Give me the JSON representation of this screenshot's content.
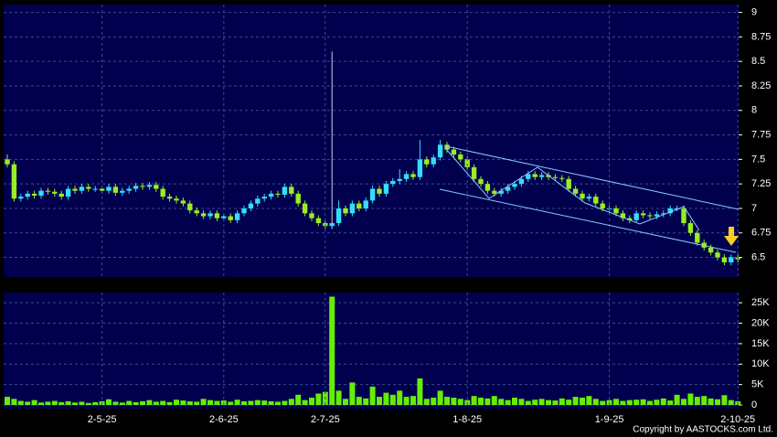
{
  "chart_data": [
    {
      "type": "candlestick",
      "up_color": "#33ddff",
      "down_color": "#99ee22",
      "open": [
        7.5,
        7.45,
        7.1,
        7.12,
        7.15,
        7.13,
        7.18,
        7.17,
        7.15,
        7.12,
        7.2,
        7.18,
        7.22,
        7.2,
        7.2,
        7.18,
        7.22,
        7.16,
        7.18,
        7.2,
        7.23,
        7.22,
        7.24,
        7.2,
        7.12,
        7.1,
        7.08,
        7.05,
        6.98,
        6.95,
        6.92,
        6.95,
        6.9,
        6.92,
        6.88,
        6.95,
        7.0,
        7.05,
        7.1,
        7.12,
        7.15,
        7.14,
        7.22,
        7.15,
        7.05,
        6.95,
        6.9,
        6.85,
        6.82,
        6.85,
        7.0,
        6.95,
        7.05,
        7.0,
        7.08,
        7.2,
        7.15,
        7.25,
        7.28,
        7.3,
        7.35,
        7.32,
        7.5,
        7.45,
        7.52,
        7.65,
        7.6,
        7.55,
        7.5,
        7.42,
        7.3,
        7.25,
        7.18,
        7.15,
        7.18,
        7.22,
        7.25,
        7.3,
        7.35,
        7.32,
        7.34,
        7.32,
        7.31,
        7.3,
        7.2,
        7.15,
        7.1,
        7.12,
        7.05,
        7.0,
        7.0,
        6.95,
        6.9,
        6.88,
        6.95,
        6.93,
        6.92,
        6.94,
        6.95,
        7.0,
        7.0,
        6.85,
        6.75,
        6.65,
        6.6,
        6.55,
        6.5,
        6.45,
        6.5
      ],
      "high": [
        7.55,
        7.48,
        7.15,
        7.18,
        7.18,
        7.21,
        7.21,
        7.2,
        7.18,
        7.23,
        7.23,
        7.25,
        7.25,
        7.23,
        7.23,
        7.25,
        7.25,
        7.21,
        7.23,
        7.26,
        7.26,
        7.27,
        7.27,
        7.23,
        7.15,
        7.13,
        7.11,
        7.08,
        7.01,
        6.98,
        6.98,
        6.98,
        6.95,
        6.95,
        6.98,
        7.03,
        7.08,
        7.13,
        7.15,
        7.18,
        7.18,
        7.25,
        7.25,
        7.18,
        7.08,
        6.98,
        6.93,
        6.88,
        8.6,
        7.08,
        7.03,
        7.08,
        7.08,
        7.11,
        7.23,
        7.23,
        7.28,
        7.31,
        7.4,
        7.38,
        7.38,
        7.7,
        7.53,
        7.55,
        7.7,
        7.68,
        7.63,
        7.58,
        7.53,
        7.45,
        7.33,
        7.28,
        7.21,
        7.21,
        7.25,
        7.28,
        7.33,
        7.38,
        7.38,
        7.37,
        7.37,
        7.35,
        7.34,
        7.33,
        7.23,
        7.18,
        7.15,
        7.15,
        7.08,
        7.03,
        7.03,
        6.98,
        6.93,
        6.98,
        6.98,
        6.96,
        6.97,
        6.98,
        7.03,
        7.03,
        7.03,
        6.88,
        6.78,
        6.68,
        6.63,
        6.58,
        6.53,
        6.53,
        6.53
      ],
      "low": [
        7.42,
        7.07,
        7.07,
        7.09,
        7.1,
        7.1,
        7.14,
        7.12,
        7.09,
        7.09,
        7.15,
        7.15,
        7.17,
        7.17,
        7.15,
        7.15,
        7.13,
        7.13,
        7.15,
        7.17,
        7.19,
        7.19,
        7.17,
        7.09,
        7.07,
        7.05,
        7.02,
        6.95,
        6.92,
        6.89,
        6.89,
        6.87,
        6.87,
        6.85,
        6.85,
        6.92,
        6.97,
        7.02,
        7.07,
        7.09,
        7.11,
        7.11,
        7.12,
        7.02,
        6.92,
        6.87,
        6.82,
        6.79,
        6.79,
        6.82,
        6.92,
        6.92,
        6.97,
        6.97,
        7.05,
        7.12,
        7.12,
        7.22,
        7.25,
        7.27,
        7.29,
        7.29,
        7.42,
        7.42,
        7.49,
        7.57,
        7.52,
        7.47,
        7.39,
        7.27,
        7.22,
        7.15,
        7.12,
        7.12,
        7.15,
        7.19,
        7.22,
        7.27,
        7.29,
        7.29,
        7.29,
        7.28,
        7.27,
        7.17,
        7.12,
        7.07,
        7.07,
        7.02,
        6.97,
        6.97,
        6.92,
        6.87,
        6.85,
        6.85,
        6.9,
        6.89,
        6.89,
        6.91,
        6.92,
        6.97,
        6.82,
        6.72,
        6.62,
        6.57,
        6.52,
        6.47,
        6.42,
        6.42,
        6.45
      ],
      "close": [
        7.45,
        7.1,
        7.12,
        7.15,
        7.13,
        7.18,
        7.17,
        7.15,
        7.12,
        7.2,
        7.18,
        7.22,
        7.2,
        7.2,
        7.18,
        7.22,
        7.16,
        7.18,
        7.2,
        7.23,
        7.22,
        7.24,
        7.2,
        7.12,
        7.1,
        7.08,
        7.05,
        6.98,
        6.95,
        6.92,
        6.95,
        6.9,
        6.92,
        6.88,
        6.95,
        7.0,
        7.05,
        7.1,
        7.12,
        7.15,
        7.14,
        7.22,
        7.15,
        7.05,
        6.95,
        6.9,
        6.85,
        6.82,
        6.85,
        7.0,
        6.95,
        7.05,
        7.0,
        7.08,
        7.2,
        7.15,
        7.25,
        7.28,
        7.3,
        7.35,
        7.32,
        7.5,
        7.45,
        7.52,
        7.65,
        7.6,
        7.55,
        7.5,
        7.42,
        7.3,
        7.25,
        7.18,
        7.15,
        7.18,
        7.22,
        7.25,
        7.3,
        7.35,
        7.32,
        7.34,
        7.32,
        7.31,
        7.3,
        7.2,
        7.15,
        7.1,
        7.12,
        7.05,
        7.0,
        7.0,
        6.95,
        6.9,
        6.88,
        6.95,
        6.93,
        6.92,
        6.94,
        6.95,
        7.0,
        7.0,
        6.85,
        6.75,
        6.65,
        6.6,
        6.55,
        6.5,
        6.45,
        6.5,
        6.48
      ],
      "ylim": [
        6.3,
        9.08
      ],
      "yticks": [
        6.5,
        6.75,
        7,
        7.25,
        7.5,
        7.75,
        8,
        8.25,
        8.5,
        8.75,
        9
      ],
      "grid": true
    },
    {
      "type": "bar",
      "color": "#66ee00",
      "categories": [
        null,
        null,
        null,
        null,
        null,
        null,
        null,
        null,
        null,
        null,
        null,
        null,
        null,
        null,
        "2-5-25",
        null,
        null,
        null,
        null,
        null,
        null,
        null,
        null,
        null,
        null,
        null,
        null,
        null,
        null,
        null,
        null,
        null,
        "2-6-25",
        null,
        null,
        null,
        null,
        null,
        null,
        null,
        null,
        null,
        null,
        null,
        null,
        null,
        null,
        "2-7-25",
        null,
        null,
        null,
        null,
        null,
        null,
        null,
        null,
        null,
        null,
        null,
        null,
        null,
        null,
        null,
        null,
        null,
        null,
        null,
        null,
        "1-8-25",
        null,
        null,
        null,
        null,
        null,
        null,
        null,
        null,
        null,
        null,
        null,
        null,
        null,
        null,
        null,
        null,
        null,
        null,
        null,
        null,
        "1-9-25",
        null,
        null,
        null,
        null,
        null,
        null,
        null,
        null,
        null,
        null,
        null,
        null,
        null,
        null,
        null,
        null,
        null,
        null,
        "2-10-25"
      ],
      "values": [
        2000,
        1500,
        1000,
        800,
        1200,
        600,
        800,
        1000,
        700,
        900,
        600,
        800,
        500,
        700,
        900,
        1400,
        800,
        600,
        1000,
        700,
        900,
        1200,
        800,
        1000,
        700,
        1300,
        1100,
        900,
        800,
        1500,
        1200,
        1000,
        1100,
        800,
        1300,
        900,
        1000,
        1200,
        1100,
        900,
        800,
        1000,
        1500,
        2500,
        1200,
        1800,
        2800,
        3200,
        26500,
        3500,
        1500,
        5500,
        2000,
        1600,
        4500,
        2000,
        3000,
        2500,
        3500,
        2000,
        2200,
        6500,
        1500,
        1800,
        3500,
        2000,
        1800,
        1500,
        1200,
        2200,
        1800,
        1600,
        2200,
        1500,
        1200,
        1800,
        1500,
        1000,
        1300,
        1500,
        1200,
        1100,
        1600,
        1300,
        2000,
        1800,
        2200,
        1500,
        1000,
        1200,
        1500,
        1000,
        1200,
        1300,
        1400,
        1000,
        1300,
        1600,
        1100,
        2500,
        1500,
        2800,
        2000,
        2200,
        1600,
        1400,
        2400,
        1200,
        900
      ],
      "ylim": [
        0,
        27500
      ],
      "yticks": [
        0,
        {
          "value": 5000,
          "label": "5K"
        },
        {
          "value": 10000,
          "label": "10K"
        },
        {
          "value": 15000,
          "label": "15K"
        },
        {
          "value": 20000,
          "label": "20K"
        },
        {
          "value": 25000,
          "label": "25K"
        }
      ],
      "grid": true
    }
  ],
  "copyright": "Copyright by AASTOCKS.com Ltd."
}
